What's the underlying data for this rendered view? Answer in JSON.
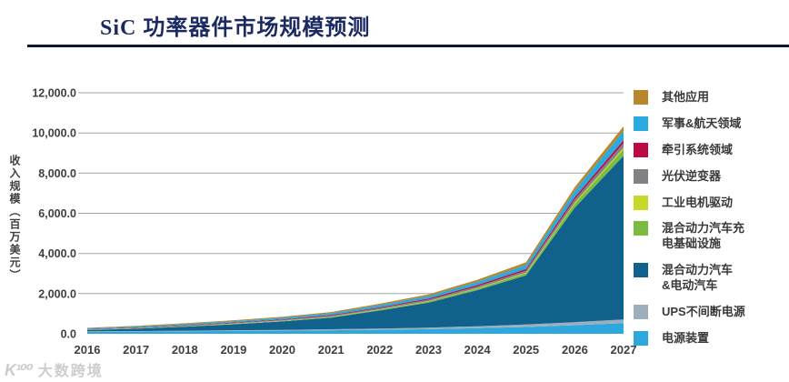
{
  "header": {
    "title": "SiC 功率器件市场规模预测"
  },
  "watermark": {
    "logo": "K¹⁰⁰",
    "text": "大数跨境"
  },
  "chart_data": {
    "type": "area",
    "stacked": true,
    "title": "SiC 功率器件市场规模预测",
    "ylabel": "收入规模（百万美元）",
    "xlabel": "",
    "x_years": [
      "2016",
      "2017",
      "2018",
      "2019",
      "2020",
      "2021",
      "2022",
      "2023",
      "2024",
      "2025",
      "2026",
      "2027"
    ],
    "ylim": [
      0,
      12000
    ],
    "grid": true,
    "legend_position": "right",
    "yticks": {
      "values": [
        0,
        2000,
        4000,
        6000,
        8000,
        10000,
        12000
      ],
      "labels": [
        "0.0",
        "2,000.0",
        "4,000.0",
        "6,000.0",
        "8,000.0",
        "10,000.0",
        "12,000.0"
      ]
    },
    "series_bottom_to_top": [
      {
        "name": "电源装置",
        "color": "#2EA7DF",
        "values": [
          100,
          110,
          125,
          140,
          155,
          175,
          200,
          230,
          280,
          340,
          430,
          530
        ]
      },
      {
        "name": "UPS不间断电源",
        "color": "#9DAFBD",
        "values": [
          20,
          25,
          30,
          35,
          40,
          50,
          60,
          75,
          95,
          120,
          150,
          180
        ]
      },
      {
        "name": "混合动力汽车&电动汽车",
        "color": "#10618C",
        "values": [
          60,
          120,
          200,
          300,
          420,
          580,
          900,
          1250,
          1800,
          2450,
          5700,
          8150
        ]
      },
      {
        "name": "混合动力汽车充电基础设施",
        "color": "#79BB43",
        "values": [
          10,
          12,
          15,
          20,
          25,
          32,
          42,
          55,
          75,
          100,
          200,
          320
        ]
      },
      {
        "name": "工业电机驱动",
        "color": "#C5D92D",
        "values": [
          5,
          6,
          8,
          10,
          12,
          15,
          18,
          22,
          28,
          35,
          60,
          90
        ]
      },
      {
        "name": "光伏逆变器",
        "color": "#808285",
        "values": [
          20,
          24,
          28,
          33,
          38,
          45,
          55,
          65,
          80,
          100,
          160,
          230
        ]
      },
      {
        "name": "牵引系统领域",
        "color": "#BE0A43",
        "values": [
          15,
          18,
          22,
          26,
          30,
          36,
          44,
          54,
          68,
          85,
          110,
          140
        ]
      },
      {
        "name": "军事&航天领域",
        "color": "#29ABE2",
        "values": [
          40,
          48,
          56,
          66,
          76,
          90,
          110,
          130,
          160,
          200,
          320,
          460
        ]
      },
      {
        "name": "其他应用",
        "color": "#B8872B",
        "values": [
          30,
          35,
          40,
          46,
          52,
          60,
          72,
          85,
          105,
          130,
          180,
          230
        ]
      }
    ],
    "legend_items_top_to_bottom": [
      {
        "label": "其他应用",
        "color": "#B8872B"
      },
      {
        "label": "军事&航天领域",
        "color": "#29ABE2"
      },
      {
        "label": "牵引系统领域",
        "color": "#BE0A43"
      },
      {
        "label": "光伏逆变器",
        "color": "#808285"
      },
      {
        "label": "工业电机驱动",
        "color": "#C5D92D"
      },
      {
        "label": "混合动力汽车充\n电基础设施",
        "color": "#79BB43"
      },
      {
        "label": "混合动力汽车\n&电动汽车",
        "color": "#10618C"
      },
      {
        "label": "UPS不间断电源",
        "color": "#9DAFBD"
      },
      {
        "label": "电源装置",
        "color": "#2EA7DF"
      }
    ]
  }
}
